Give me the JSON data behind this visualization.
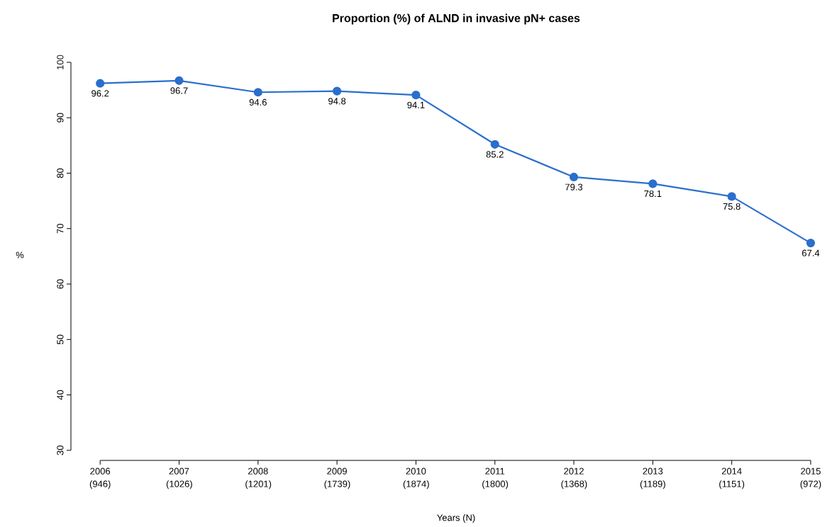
{
  "chart_data": {
    "type": "line",
    "title": "Proportion (%) of ALND in invasive pN+ cases",
    "xlabel": "Years (N)",
    "ylabel": "%",
    "categories": [
      "2006 (946)",
      "2007 (1026)",
      "2008 (1201)",
      "2009 (1739)",
      "2010 (1874)",
      "2011 (1800)",
      "2012 (1368)",
      "2013 (1189)",
      "2014 (1151)",
      "2015 (972)"
    ],
    "values": [
      96.2,
      96.7,
      94.6,
      94.8,
      94.1,
      85.2,
      79.3,
      78.1,
      75.8,
      67.4
    ],
    "color": "#2a6fcc",
    "ylim": [
      30,
      100
    ],
    "yticks": [
      30,
      40,
      50,
      60,
      70,
      80,
      90,
      100
    ],
    "data_labels": true,
    "marker": "circle"
  }
}
